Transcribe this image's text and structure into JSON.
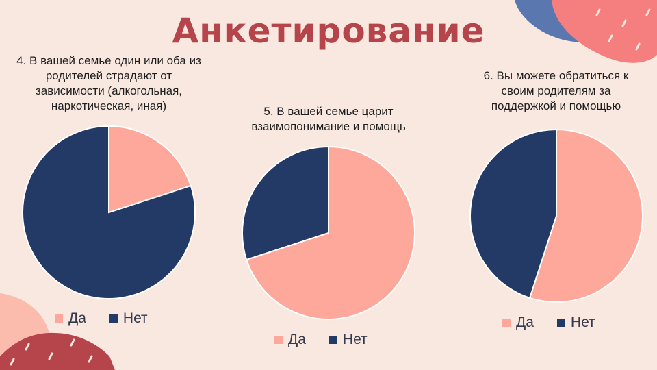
{
  "page": {
    "title": "Анкетирование"
  },
  "colors": {
    "yes": "#fda89a",
    "no": "#233a66",
    "title": "#b5454b",
    "background": "#f9e8df"
  },
  "chart_data": [
    {
      "type": "pie",
      "title": "4. В вашей семье один или оба из родителей страдают от зависимости (алкогольная, наркотическая, иная)",
      "title_lines": [
        "4. В вашей семье один или оба из",
        "родителей страдают от",
        "зависимости (алкогольная,",
        "наркотическая, иная)"
      ],
      "categories": [
        "Да",
        "Нет"
      ],
      "values": [
        20,
        80
      ],
      "colors": [
        "#fda89a",
        "#233a66"
      ],
      "legend": "bottom"
    },
    {
      "type": "pie",
      "title": "5. В вашей семье царит взаимопонимание и помощь",
      "title_lines": [
        "5.  В вашей семье царит",
        "взаимопонимание и помощь"
      ],
      "categories": [
        "Да",
        "Нет"
      ],
      "values": [
        70,
        30
      ],
      "colors": [
        "#fda89a",
        "#233a66"
      ],
      "legend": "bottom"
    },
    {
      "type": "pie",
      "title": "6. Вы можете обратиться к своим родителям за поддержкой и помощью",
      "title_lines": [
        "6.  Вы можете обратиться к",
        "своим родителям за",
        "поддержкой и помощью"
      ],
      "categories": [
        "Да",
        "Нет"
      ],
      "values": [
        55,
        45
      ],
      "colors": [
        "#fda89a",
        "#233a66"
      ],
      "legend": "bottom"
    }
  ]
}
